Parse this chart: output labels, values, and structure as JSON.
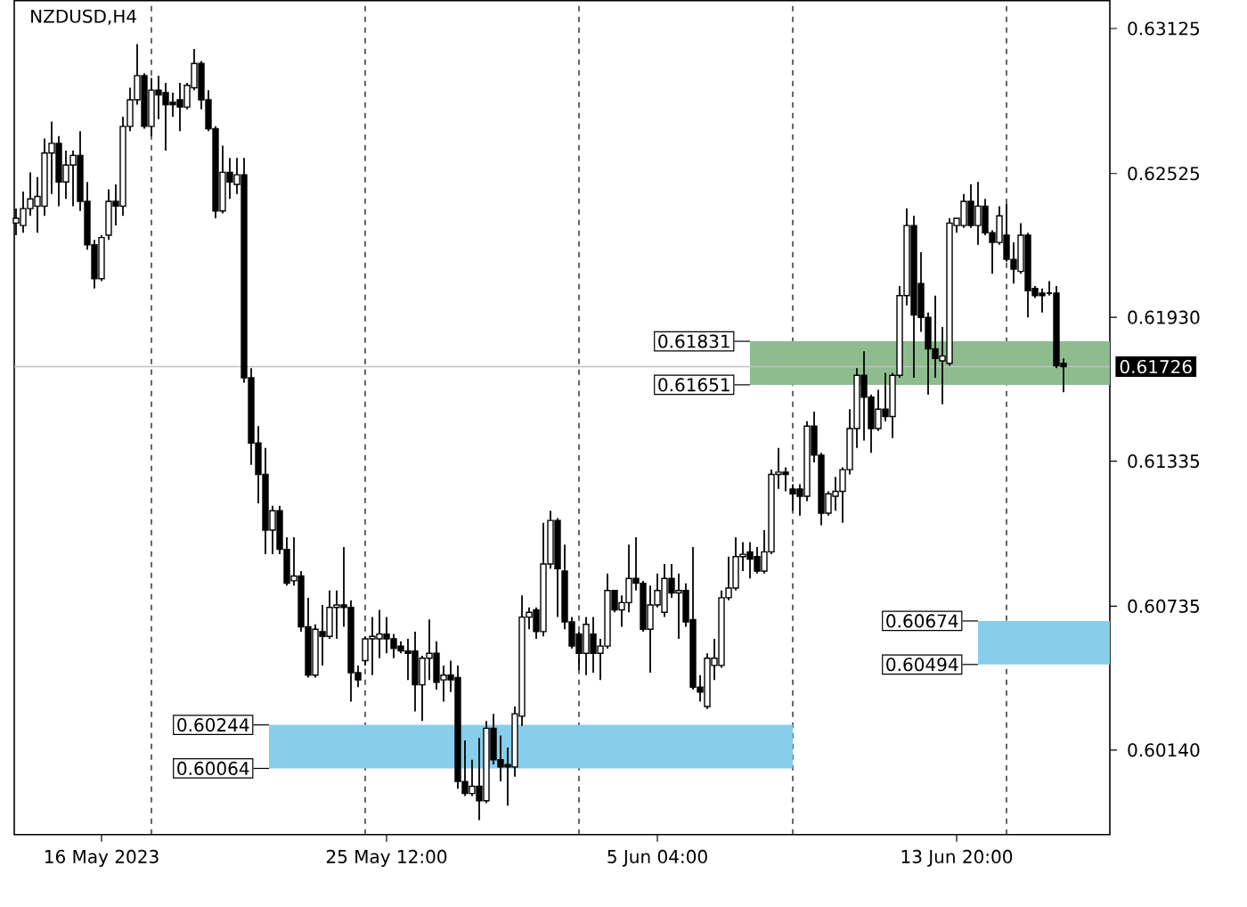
{
  "chart_data": {
    "type": "candlestick",
    "title": "NZDUSD,H4",
    "categories": [
      null,
      null,
      null,
      null,
      null,
      null,
      null,
      null,
      null,
      null,
      null,
      null,
      "16 May 2023",
      null,
      null,
      null,
      null,
      null,
      null,
      null,
      null,
      null,
      null,
      null,
      null,
      null,
      null,
      null,
      null,
      null,
      null,
      null,
      null,
      null,
      null,
      null,
      null,
      null,
      null,
      null,
      null,
      null,
      null,
      null,
      null,
      null,
      null,
      null,
      null,
      null,
      null,
      null,
      "25 May 12:00",
      null,
      null,
      null,
      null,
      null,
      null,
      null,
      null,
      null,
      null,
      null,
      null,
      null,
      null,
      null,
      null,
      null,
      null,
      null,
      null,
      null,
      null,
      null,
      null,
      null,
      null,
      null,
      null,
      null,
      null,
      null,
      null,
      null,
      null,
      null,
      null,
      null,
      "5 Jun 04:00",
      null,
      null,
      null,
      null,
      null,
      null,
      null,
      null,
      null,
      null,
      null,
      null,
      null,
      null,
      null,
      null,
      null,
      null,
      null,
      null,
      null,
      null,
      null,
      null,
      null,
      null,
      null,
      null,
      null,
      null,
      null,
      null,
      null,
      null,
      null,
      null,
      null,
      null,
      null,
      null,
      null,
      "13 Jun 20:00",
      null,
      null,
      null,
      null,
      null,
      null,
      null,
      null,
      null,
      null,
      null,
      null,
      null,
      null,
      null
    ],
    "ohlc": [
      [
        0.6232,
        0.6238,
        0.6227,
        0.6234
      ],
      [
        0.6231,
        0.6245,
        0.6228,
        0.6238
      ],
      [
        0.6238,
        0.6253,
        0.6235,
        0.6242
      ],
      [
        0.6239,
        0.6251,
        0.6228,
        0.6243
      ],
      [
        0.6239,
        0.6267,
        0.6235,
        0.6261
      ],
      [
        0.6261,
        0.6274,
        0.6244,
        0.6265
      ],
      [
        0.6265,
        0.6268,
        0.6239,
        0.6249
      ],
      [
        0.6249,
        0.6262,
        0.6242,
        0.6256
      ],
      [
        0.6256,
        0.6262,
        0.6239,
        0.626
      ],
      [
        0.626,
        0.627,
        0.6237,
        0.6241
      ],
      [
        0.6241,
        0.6249,
        0.6221,
        0.6223
      ],
      [
        0.6223,
        0.6225,
        0.6205,
        0.6209
      ],
      [
        0.6209,
        0.6227,
        0.6208,
        0.6226
      ],
      [
        0.6227,
        0.6246,
        0.6225,
        0.6241
      ],
      [
        0.6241,
        0.6248,
        0.6231,
        0.6239
      ],
      [
        0.6239,
        0.6276,
        0.6235,
        0.6272
      ],
      [
        0.6272,
        0.6288,
        0.627,
        0.6283
      ],
      [
        0.6283,
        0.6306,
        0.6281,
        0.6293
      ],
      [
        0.6293,
        0.6294,
        0.6271,
        0.6272
      ],
      [
        0.6272,
        0.6292,
        0.6268,
        0.6287
      ],
      [
        0.6287,
        0.6293,
        0.6275,
        0.6285
      ],
      [
        0.6286,
        0.629,
        0.6262,
        0.6281
      ],
      [
        0.6282,
        0.6286,
        0.6276,
        0.6281
      ],
      [
        0.6283,
        0.629,
        0.627,
        0.628
      ],
      [
        0.628,
        0.629,
        0.6279,
        0.6289
      ],
      [
        0.6288,
        0.6304,
        0.6287,
        0.6298
      ],
      [
        0.6298,
        0.6299,
        0.6279,
        0.6283
      ],
      [
        0.6283,
        0.6287,
        0.627,
        0.6271
      ],
      [
        0.6271,
        0.6272,
        0.6234,
        0.6237
      ],
      [
        0.6237,
        0.6264,
        0.6236,
        0.6253
      ],
      [
        0.6253,
        0.6259,
        0.6242,
        0.6249
      ],
      [
        0.6248,
        0.6259,
        0.6244,
        0.6252
      ],
      [
        0.6252,
        0.6259,
        0.6166,
        0.6168
      ],
      [
        0.6168,
        0.6172,
        0.6132,
        0.6141
      ],
      [
        0.6141,
        0.6148,
        0.6116,
        0.6128
      ],
      [
        0.6128,
        0.6139,
        0.6095,
        0.6105
      ],
      [
        0.6105,
        0.6115,
        0.6095,
        0.6113
      ],
      [
        0.6113,
        0.6115,
        0.6095,
        0.6097
      ],
      [
        0.6097,
        0.6102,
        0.6082,
        0.6083
      ],
      [
        0.6084,
        0.6102,
        0.6082,
        0.6086
      ],
      [
        0.6086,
        0.6088,
        0.6063,
        0.6065
      ],
      [
        0.6065,
        0.6077,
        0.6044,
        0.6045
      ],
      [
        0.6045,
        0.6066,
        0.6044,
        0.6064
      ],
      [
        0.6063,
        0.6074,
        0.6049,
        0.6061
      ],
      [
        0.6061,
        0.608,
        0.606,
        0.6073
      ],
      [
        0.6073,
        0.608,
        0.606,
        0.6074
      ],
      [
        0.6074,
        0.6098,
        0.6065,
        0.6073
      ],
      [
        0.6073,
        0.6076,
        0.6034,
        0.6046
      ],
      [
        0.6046,
        0.6049,
        0.604,
        0.6043
      ],
      [
        0.6051,
        0.6061,
        0.6049,
        0.606
      ],
      [
        0.606,
        0.6069,
        0.6045,
        0.6061
      ],
      [
        0.606,
        0.6072,
        0.6052,
        0.6062
      ],
      [
        0.6062,
        0.6069,
        0.6054,
        0.606
      ],
      [
        0.606,
        0.6062,
        0.6052,
        0.6056
      ],
      [
        0.6057,
        0.6059,
        0.6054,
        0.6055
      ],
      [
        0.6055,
        0.606,
        0.6043,
        0.6054
      ],
      [
        0.6055,
        0.6063,
        0.603,
        0.6041
      ],
      [
        0.6041,
        0.6053,
        0.6026,
        0.6052
      ],
      [
        0.6052,
        0.6068,
        0.6043,
        0.6054
      ],
      [
        0.6054,
        0.6059,
        0.6039,
        0.6042
      ],
      [
        0.6043,
        0.6049,
        0.6034,
        0.6045
      ],
      [
        0.6045,
        0.6051,
        0.6038,
        0.6043
      ],
      [
        0.6044,
        0.6049,
        0.5998,
        0.6001
      ],
      [
        0.6001,
        0.6018,
        0.5995,
        0.5996
      ],
      [
        0.5996,
        0.601,
        0.5995,
        0.5999
      ],
      [
        0.5999,
        0.6019,
        0.5985,
        0.5993
      ],
      [
        0.5993,
        0.6026,
        0.5992,
        0.6023
      ],
      [
        0.6023,
        0.6029,
        0.6008,
        0.601
      ],
      [
        0.601,
        0.602,
        0.6001,
        0.6007
      ],
      [
        0.6008,
        0.6015,
        0.5991,
        0.6007
      ],
      [
        0.6007,
        0.6032,
        0.6003,
        0.6029
      ],
      [
        0.6028,
        0.6078,
        0.6024,
        0.6069
      ],
      [
        0.6069,
        0.6073,
        0.6064,
        0.6071
      ],
      [
        0.6072,
        0.6073,
        0.606,
        0.6063
      ],
      [
        0.6063,
        0.6108,
        0.6061,
        0.6091
      ],
      [
        0.6091,
        0.6113,
        0.6089,
        0.6109
      ],
      [
        0.6109,
        0.611,
        0.6069,
        0.6089
      ],
      [
        0.6088,
        0.6099,
        0.6064,
        0.6067
      ],
      [
        0.6067,
        0.6069,
        0.6056,
        0.6057
      ],
      [
        0.6062,
        0.6063,
        0.6047,
        0.6054
      ],
      [
        0.6054,
        0.6069,
        0.6045,
        0.6066
      ],
      [
        0.6062,
        0.6069,
        0.6046,
        0.6054
      ],
      [
        0.6054,
        0.606,
        0.6043,
        0.6057
      ],
      [
        0.6057,
        0.6087,
        0.6056,
        0.608
      ],
      [
        0.608,
        0.608,
        0.6071,
        0.6072
      ],
      [
        0.6072,
        0.6078,
        0.6065,
        0.6075
      ],
      [
        0.6075,
        0.6099,
        0.6071,
        0.6085
      ],
      [
        0.6085,
        0.6102,
        0.608,
        0.6083
      ],
      [
        0.6083,
        0.6084,
        0.6063,
        0.6064
      ],
      [
        0.6064,
        0.6082,
        0.6046,
        0.6074
      ],
      [
        0.6074,
        0.6087,
        0.6073,
        0.608
      ],
      [
        0.6071,
        0.6091,
        0.6069,
        0.6085
      ],
      [
        0.6085,
        0.6091,
        0.6077,
        0.6079
      ],
      [
        0.6079,
        0.6087,
        0.606,
        0.608
      ],
      [
        0.608,
        0.6083,
        0.6065,
        0.6067
      ],
      [
        0.6068,
        0.6098,
        0.6039,
        0.604
      ],
      [
        0.604,
        0.6045,
        0.6034,
        0.6038
      ],
      [
        0.6032,
        0.6054,
        0.6031,
        0.6052
      ],
      [
        0.6049,
        0.606,
        0.6043,
        0.6052
      ],
      [
        0.6049,
        0.608,
        0.6048,
        0.6077
      ],
      [
        0.6077,
        0.6094,
        0.6076,
        0.6081
      ],
      [
        0.6081,
        0.6102,
        0.608,
        0.6094
      ],
      [
        0.6094,
        0.61,
        0.6088,
        0.6095
      ],
      [
        0.6096,
        0.61,
        0.6085,
        0.6093
      ],
      [
        0.6094,
        0.6098,
        0.6087,
        0.6088
      ],
      [
        0.6088,
        0.6105,
        0.6087,
        0.6096
      ],
      [
        0.6096,
        0.613,
        0.6095,
        0.6128
      ],
      [
        0.6128,
        0.6139,
        0.6122,
        0.6129
      ],
      [
        0.6129,
        0.6131,
        0.6121,
        0.6128
      ],
      [
        0.6122,
        0.6124,
        0.6113,
        0.612
      ],
      [
        0.6122,
        0.6124,
        0.6111,
        0.6119
      ],
      [
        0.6119,
        0.615,
        0.6117,
        0.6148
      ],
      [
        0.6148,
        0.6154,
        0.6133,
        0.6136
      ],
      [
        0.6136,
        0.6137,
        0.6107,
        0.6112
      ],
      [
        0.6112,
        0.6121,
        0.6111,
        0.612
      ],
      [
        0.6119,
        0.6127,
        0.6113,
        0.6121
      ],
      [
        0.6121,
        0.6131,
        0.6108,
        0.613
      ],
      [
        0.613,
        0.6155,
        0.6128,
        0.6147
      ],
      [
        0.6147,
        0.6172,
        0.6139,
        0.6169
      ],
      [
        0.6169,
        0.6179,
        0.6142,
        0.616
      ],
      [
        0.616,
        0.6161,
        0.6137,
        0.6147
      ],
      [
        0.6147,
        0.6163,
        0.6146,
        0.6155
      ],
      [
        0.6155,
        0.617,
        0.615,
        0.6152
      ],
      [
        0.6152,
        0.617,
        0.6143,
        0.6169
      ],
      [
        0.6169,
        0.6206,
        0.6168,
        0.6202
      ],
      [
        0.6202,
        0.6238,
        0.6198,
        0.6231
      ],
      [
        0.6231,
        0.6235,
        0.6168,
        0.6194
      ],
      [
        0.6207,
        0.622,
        0.6187,
        0.6193
      ],
      [
        0.6193,
        0.6195,
        0.6161,
        0.618
      ],
      [
        0.618,
        0.6202,
        0.6168,
        0.6176
      ],
      [
        0.6175,
        0.6189,
        0.6157,
        0.6177
      ],
      [
        0.6174,
        0.6234,
        0.6173,
        0.6232
      ],
      [
        0.6231,
        0.6234,
        0.6228,
        0.6234
      ],
      [
        0.6231,
        0.6244,
        0.623,
        0.6241
      ],
      [
        0.6241,
        0.6248,
        0.623,
        0.6231
      ],
      [
        0.6231,
        0.6249,
        0.6223,
        0.6239
      ],
      [
        0.6239,
        0.6242,
        0.6227,
        0.6228
      ],
      [
        0.6228,
        0.6229,
        0.6211,
        0.6224
      ],
      [
        0.6224,
        0.6239,
        0.6223,
        0.6235
      ],
      [
        0.6227,
        0.624,
        0.6216,
        0.6217
      ],
      [
        0.6217,
        0.6224,
        0.6207,
        0.6213
      ],
      [
        0.6212,
        0.6232,
        0.6211,
        0.6227
      ],
      [
        0.6227,
        0.6228,
        0.6193,
        0.6204
      ],
      [
        0.6205,
        0.6206,
        0.6201,
        0.6202
      ],
      [
        0.6203,
        0.6205,
        0.6195,
        0.6202
      ],
      [
        0.6203,
        0.6208,
        0.6202,
        0.6203
      ],
      [
        0.6203,
        0.6206,
        0.6172,
        0.6173
      ],
      [
        0.6174,
        0.6176,
        0.6162,
        0.61726
      ]
    ],
    "ylim": [
      0.5979,
      0.6324
    ],
    "yticks": [
      0.63125,
      0.62525,
      {
        "value": 0.6193,
        "label": "0.61930"
      },
      0.61335,
      0.60735,
      {
        "value": 0.6014,
        "label": "0.60140"
      }
    ],
    "grid": "x",
    "ref_lines": [
      {
        "axis": "y",
        "value": 0.61726,
        "label": "0.61726",
        "color": "#c0c0c0"
      }
    ],
    "bands": [
      {
        "axis": "y",
        "from": 0.61651,
        "to": 0.61831,
        "label": "0.61831",
        "color": "#8fbc8f"
      },
      {
        "axis": "y",
        "from": 0.60064,
        "to": 0.60244,
        "label": "0.60244",
        "color": "#87ceeb"
      },
      {
        "axis": "y",
        "from": 0.60494,
        "to": 0.60674,
        "label": "0.60674",
        "color": "#87ceeb"
      }
    ],
    "annotations": [
      "0.61651",
      "0.60064",
      "0.60494"
    ]
  }
}
